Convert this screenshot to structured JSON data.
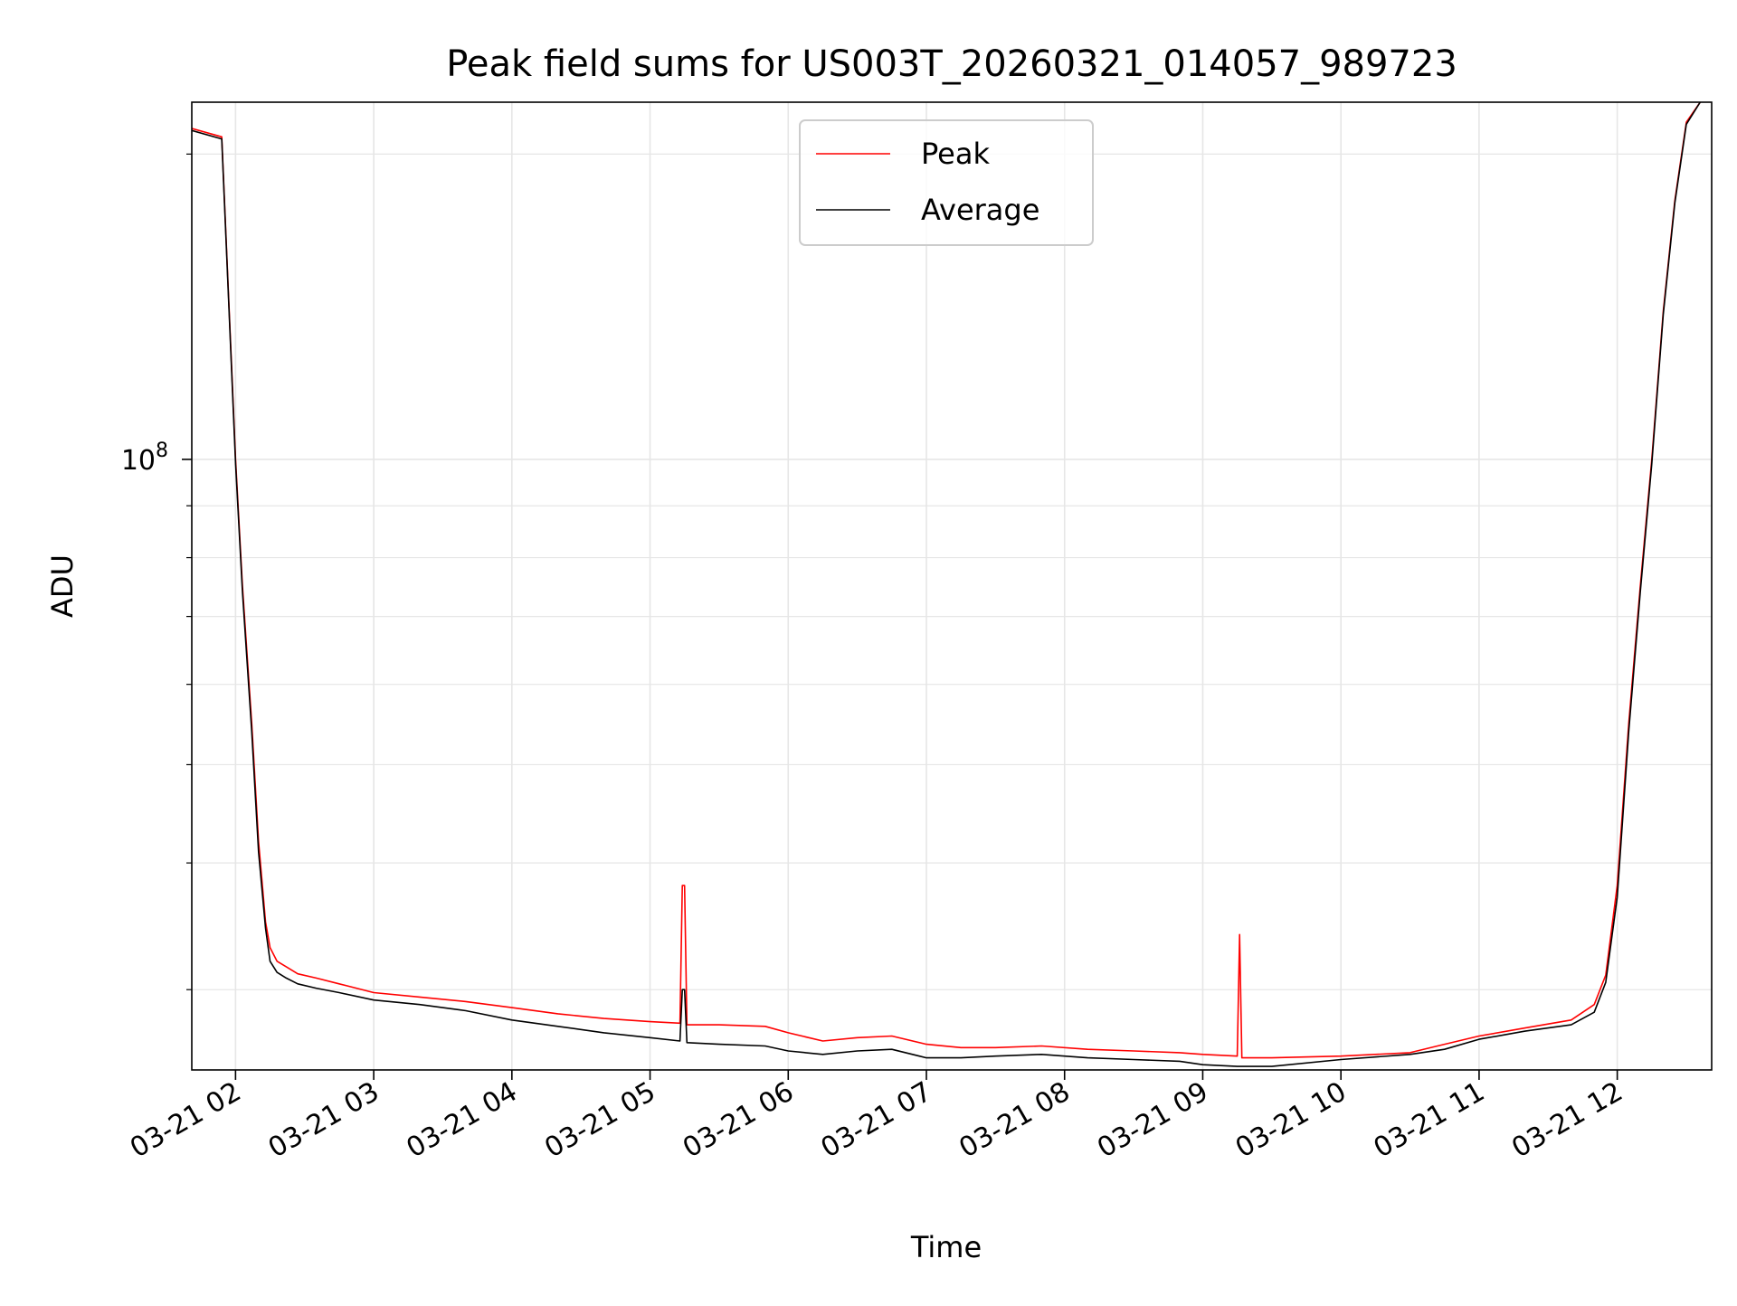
{
  "chart_data": {
    "type": "line",
    "title": "Peak field sums for US003T_20260321_014057_989723",
    "xlabel": "Time",
    "ylabel": "ADU",
    "y_scale": "log",
    "ylim": [
      25000000,
      225000000
    ],
    "xlim": [
      "2026-03-21 01:41",
      "2026-03-21 12:41"
    ],
    "y_tick_labels": [
      {
        "value": 100000000,
        "base": "10",
        "exp": "8"
      }
    ],
    "y_minor_ticks": [
      30000000,
      40000000,
      50000000,
      60000000,
      70000000,
      80000000,
      90000000,
      200000000
    ],
    "x_ticks": [
      {
        "t": "2026-03-21 02:00",
        "label": "03-21 02"
      },
      {
        "t": "2026-03-21 03:00",
        "label": "03-21 03"
      },
      {
        "t": "2026-03-21 04:00",
        "label": "03-21 04"
      },
      {
        "t": "2026-03-21 05:00",
        "label": "03-21 05"
      },
      {
        "t": "2026-03-21 06:00",
        "label": "03-21 06"
      },
      {
        "t": "2026-03-21 07:00",
        "label": "03-21 07"
      },
      {
        "t": "2026-03-21 08:00",
        "label": "03-21 08"
      },
      {
        "t": "2026-03-21 09:00",
        "label": "03-21 09"
      },
      {
        "t": "2026-03-21 10:00",
        "label": "03-21 10"
      },
      {
        "t": "2026-03-21 11:00",
        "label": "03-21 11"
      },
      {
        "t": "2026-03-21 12:00",
        "label": "03-21 12"
      }
    ],
    "grid": true,
    "legend_position": "top-center",
    "series": [
      {
        "name": "Peak",
        "color": "#ff0000",
        "x": [
          "2026-03-21 01:41",
          "2026-03-21 01:54",
          "2026-03-21 02:00",
          "2026-03-21 02:03",
          "2026-03-21 02:07",
          "2026-03-21 02:10",
          "2026-03-21 02:13",
          "2026-03-21 02:15",
          "2026-03-21 02:18",
          "2026-03-21 02:22",
          "2026-03-21 02:27",
          "2026-03-21 02:35",
          "2026-03-21 02:45",
          "2026-03-21 03:00",
          "2026-03-21 03:20",
          "2026-03-21 03:40",
          "2026-03-21 04:00",
          "2026-03-21 04:20",
          "2026-03-21 04:40",
          "2026-03-21 05:00",
          "2026-03-21 05:13",
          "2026-03-21 05:14",
          "2026-03-21 05:15",
          "2026-03-21 05:16",
          "2026-03-21 05:30",
          "2026-03-21 05:50",
          "2026-03-21 06:00",
          "2026-03-21 06:15",
          "2026-03-21 06:30",
          "2026-03-21 06:45",
          "2026-03-21 07:00",
          "2026-03-21 07:15",
          "2026-03-21 07:30",
          "2026-03-21 07:50",
          "2026-03-21 08:10",
          "2026-03-21 08:30",
          "2026-03-21 08:50",
          "2026-03-21 09:00",
          "2026-03-21 09:15",
          "2026-03-21 09:16",
          "2026-03-21 09:17",
          "2026-03-21 09:30",
          "2026-03-21 10:00",
          "2026-03-21 10:30",
          "2026-03-21 10:45",
          "2026-03-21 11:00",
          "2026-03-21 11:20",
          "2026-03-21 11:40",
          "2026-03-21 11:50",
          "2026-03-21 11:55",
          "2026-03-21 12:00",
          "2026-03-21 12:05",
          "2026-03-21 12:10",
          "2026-03-21 12:15",
          "2026-03-21 12:20",
          "2026-03-21 12:25",
          "2026-03-21 12:30",
          "2026-03-21 12:36"
        ],
        "y": [
          212000000,
          208000000,
          100000000,
          75000000,
          55000000,
          42000000,
          35000000,
          33000000,
          32000000,
          31600000,
          31100000,
          30800000,
          30400000,
          29800000,
          29500000,
          29200000,
          28800000,
          28400000,
          28100000,
          27900000,
          27800000,
          38000000,
          38000000,
          27700000,
          27700000,
          27600000,
          27200000,
          26700000,
          26900000,
          27000000,
          26500000,
          26300000,
          26300000,
          26400000,
          26200000,
          26100000,
          26000000,
          25900000,
          25800000,
          34000000,
          25700000,
          25700000,
          25800000,
          26000000,
          26500000,
          27000000,
          27500000,
          28000000,
          29000000,
          31000000,
          38000000,
          55000000,
          75000000,
          100000000,
          140000000,
          180000000,
          215000000,
          225000000
        ]
      },
      {
        "name": "Average",
        "color": "#000000",
        "x": [
          "2026-03-21 01:41",
          "2026-03-21 01:54",
          "2026-03-21 02:00",
          "2026-03-21 02:03",
          "2026-03-21 02:07",
          "2026-03-21 02:10",
          "2026-03-21 02:13",
          "2026-03-21 02:15",
          "2026-03-21 02:18",
          "2026-03-21 02:22",
          "2026-03-21 02:27",
          "2026-03-21 02:35",
          "2026-03-21 02:45",
          "2026-03-21 03:00",
          "2026-03-21 03:20",
          "2026-03-21 03:40",
          "2026-03-21 04:00",
          "2026-03-21 04:20",
          "2026-03-21 04:40",
          "2026-03-21 05:00",
          "2026-03-21 05:13",
          "2026-03-21 05:14",
          "2026-03-21 05:15",
          "2026-03-21 05:16",
          "2026-03-21 05:30",
          "2026-03-21 05:50",
          "2026-03-21 06:00",
          "2026-03-21 06:15",
          "2026-03-21 06:30",
          "2026-03-21 06:45",
          "2026-03-21 07:00",
          "2026-03-21 07:15",
          "2026-03-21 07:30",
          "2026-03-21 07:50",
          "2026-03-21 08:10",
          "2026-03-21 08:30",
          "2026-03-21 08:50",
          "2026-03-21 09:00",
          "2026-03-21 09:15",
          "2026-03-21 09:16",
          "2026-03-21 09:17",
          "2026-03-21 09:30",
          "2026-03-21 10:00",
          "2026-03-21 10:30",
          "2026-03-21 10:45",
          "2026-03-21 11:00",
          "2026-03-21 11:20",
          "2026-03-21 11:40",
          "2026-03-21 11:50",
          "2026-03-21 11:55",
          "2026-03-21 12:00",
          "2026-03-21 12:05",
          "2026-03-21 12:10",
          "2026-03-21 12:15",
          "2026-03-21 12:20",
          "2026-03-21 12:25",
          "2026-03-21 12:30",
          "2026-03-21 12:36"
        ],
        "y": [
          211000000,
          207000000,
          99000000,
          74000000,
          54000000,
          41000000,
          34500000,
          32000000,
          31200000,
          30800000,
          30400000,
          30100000,
          29800000,
          29300000,
          29000000,
          28600000,
          28000000,
          27600000,
          27200000,
          26900000,
          26700000,
          30000000,
          30000000,
          26600000,
          26500000,
          26400000,
          26100000,
          25900000,
          26100000,
          26200000,
          25700000,
          25700000,
          25800000,
          25900000,
          25700000,
          25600000,
          25500000,
          25300000,
          25200000,
          25200000,
          25200000,
          25200000,
          25600000,
          25900000,
          26200000,
          26800000,
          27300000,
          27700000,
          28500000,
          30500000,
          37000000,
          54000000,
          74000000,
          99000000,
          139000000,
          179000000,
          214000000,
          225000000
        ]
      }
    ]
  }
}
